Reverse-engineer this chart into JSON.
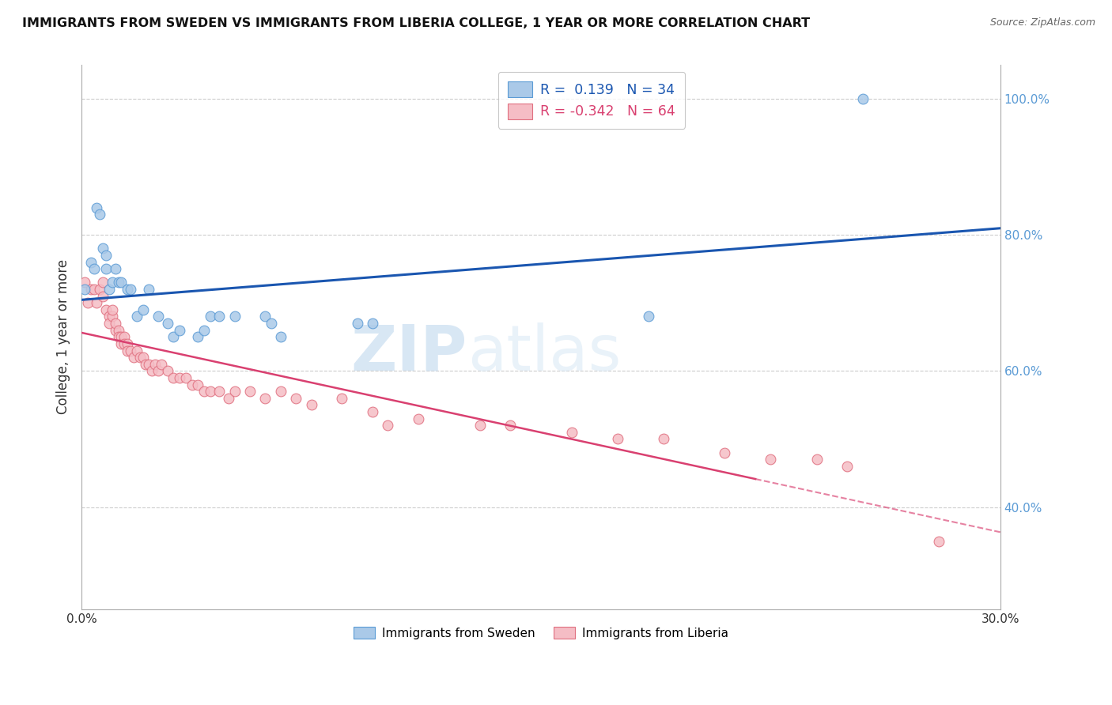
{
  "title": "IMMIGRANTS FROM SWEDEN VS IMMIGRANTS FROM LIBERIA COLLEGE, 1 YEAR OR MORE CORRELATION CHART",
  "source": "Source: ZipAtlas.com",
  "ylabel": "College, 1 year or more",
  "xlim": [
    0.0,
    0.3
  ],
  "ylim": [
    0.25,
    1.05
  ],
  "x_ticks": [
    0.0,
    0.05,
    0.1,
    0.15,
    0.2,
    0.25,
    0.3
  ],
  "x_tick_labels": [
    "0.0%",
    "",
    "",
    "",
    "",
    "",
    "30.0%"
  ],
  "y_ticks_right": [
    0.4,
    0.6,
    0.8,
    1.0
  ],
  "y_tick_labels_right": [
    "40.0%",
    "60.0%",
    "80.0%",
    "100.0%"
  ],
  "sweden_color": "#aac9e8",
  "sweden_edge_color": "#5b9bd5",
  "liberia_color": "#f5bdc5",
  "liberia_edge_color": "#e07080",
  "trend_sweden_color": "#1a56b0",
  "trend_liberia_color": "#d94070",
  "legend_R_sweden": "0.139",
  "legend_N_sweden": "34",
  "legend_R_liberia": "-0.342",
  "legend_N_liberia": "64",
  "watermark_zip": "ZIP",
  "watermark_atlas": "atlas",
  "sweden_x": [
    0.001,
    0.003,
    0.004,
    0.005,
    0.006,
    0.007,
    0.008,
    0.008,
    0.009,
    0.01,
    0.011,
    0.012,
    0.013,
    0.015,
    0.016,
    0.018,
    0.02,
    0.022,
    0.025,
    0.028,
    0.03,
    0.032,
    0.038,
    0.04,
    0.042,
    0.045,
    0.05,
    0.06,
    0.062,
    0.065,
    0.09,
    0.095,
    0.185,
    0.255
  ],
  "sweden_y": [
    0.72,
    0.76,
    0.75,
    0.84,
    0.83,
    0.78,
    0.75,
    0.77,
    0.72,
    0.73,
    0.75,
    0.73,
    0.73,
    0.72,
    0.72,
    0.68,
    0.69,
    0.72,
    0.68,
    0.67,
    0.65,
    0.66,
    0.65,
    0.66,
    0.68,
    0.68,
    0.68,
    0.68,
    0.67,
    0.65,
    0.67,
    0.67,
    0.68,
    1.0
  ],
  "liberia_x": [
    0.001,
    0.002,
    0.003,
    0.004,
    0.005,
    0.006,
    0.007,
    0.007,
    0.008,
    0.009,
    0.009,
    0.01,
    0.01,
    0.011,
    0.011,
    0.012,
    0.012,
    0.013,
    0.013,
    0.014,
    0.014,
    0.015,
    0.015,
    0.016,
    0.017,
    0.018,
    0.019,
    0.02,
    0.021,
    0.022,
    0.023,
    0.024,
    0.025,
    0.026,
    0.028,
    0.03,
    0.032,
    0.034,
    0.036,
    0.038,
    0.04,
    0.042,
    0.045,
    0.048,
    0.05,
    0.055,
    0.06,
    0.065,
    0.07,
    0.075,
    0.085,
    0.095,
    0.1,
    0.11,
    0.13,
    0.14,
    0.16,
    0.175,
    0.19,
    0.21,
    0.225,
    0.24,
    0.25,
    0.28
  ],
  "liberia_y": [
    0.73,
    0.7,
    0.72,
    0.72,
    0.7,
    0.72,
    0.73,
    0.71,
    0.69,
    0.68,
    0.67,
    0.68,
    0.69,
    0.66,
    0.67,
    0.66,
    0.65,
    0.65,
    0.64,
    0.65,
    0.64,
    0.64,
    0.63,
    0.63,
    0.62,
    0.63,
    0.62,
    0.62,
    0.61,
    0.61,
    0.6,
    0.61,
    0.6,
    0.61,
    0.6,
    0.59,
    0.59,
    0.59,
    0.58,
    0.58,
    0.57,
    0.57,
    0.57,
    0.56,
    0.57,
    0.57,
    0.56,
    0.57,
    0.56,
    0.55,
    0.56,
    0.54,
    0.52,
    0.53,
    0.52,
    0.52,
    0.51,
    0.5,
    0.5,
    0.48,
    0.47,
    0.47,
    0.46,
    0.35
  ]
}
